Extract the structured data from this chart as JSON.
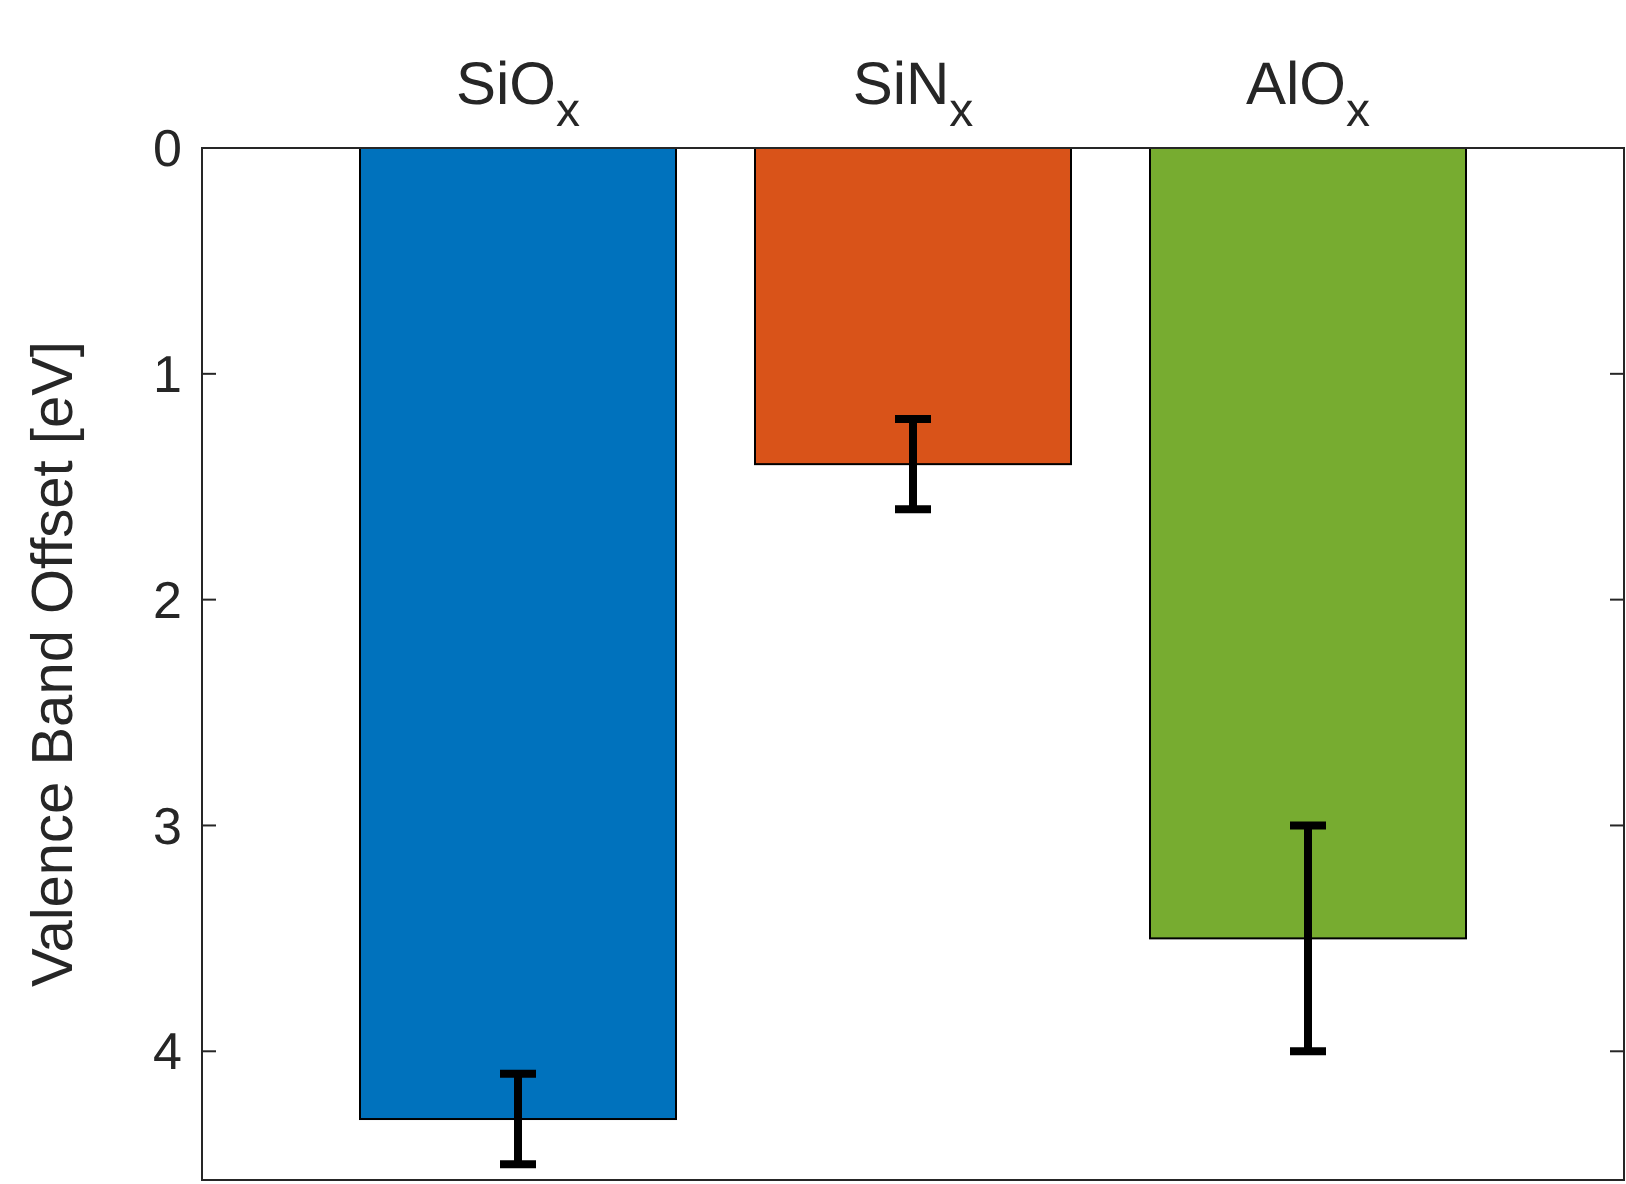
{
  "chart_data": {
    "type": "bar",
    "ylabel": "Valence Band Offset [eV]",
    "categories": [
      "SiO$_{x}$",
      "SiN$_{x}$",
      "AlO$_{x}$"
    ],
    "values": [
      4.3,
      1.4,
      3.5
    ],
    "colors": [
      "#0072bd",
      "#d95319",
      "#77ac30"
    ],
    "errors": [
      0.2,
      0.2,
      0.5
    ],
    "ylim": [
      4.57,
      0
    ],
    "yticks": [
      0,
      1,
      2,
      3,
      4
    ],
    "grid": false
  }
}
